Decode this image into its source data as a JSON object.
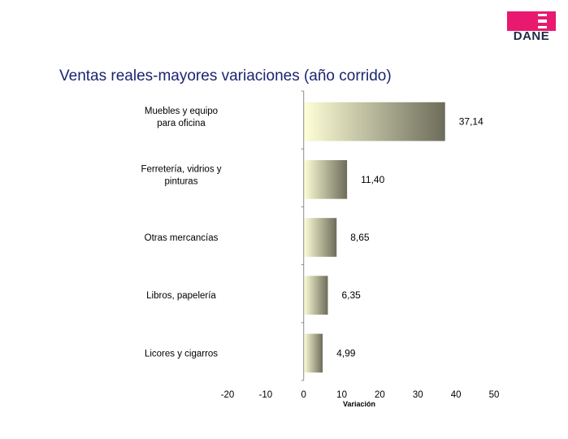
{
  "header": {
    "logo_text": "DANE",
    "brand_color": "#e8196f",
    "logo_text_color": "#1f2a44"
  },
  "title": "Ventas reales-mayores variaciones (año corrido)",
  "chart_data": {
    "type": "bar",
    "orientation": "horizontal",
    "categories": [
      [
        "Muebles y equipo",
        "para oficina"
      ],
      [
        "Ferretería, vidrios y",
        "pinturas"
      ],
      [
        "Otras mercancías"
      ],
      [
        "Libros, papelería"
      ],
      [
        "Licores y cigarros"
      ]
    ],
    "values": [
      37.14,
      11.4,
      8.65,
      6.35,
      4.99
    ],
    "value_labels": [
      "37,14",
      "11,40",
      "8,65",
      "6,35",
      "4,99"
    ],
    "xlabel": "Variación",
    "xlim": [
      -20,
      50
    ],
    "xticks": [
      -20,
      -10,
      0,
      10,
      20,
      30,
      40,
      50
    ],
    "grid": false,
    "legend": "none",
    "bar_gradient": [
      "#ffffd8",
      "#6c6c5a"
    ]
  }
}
